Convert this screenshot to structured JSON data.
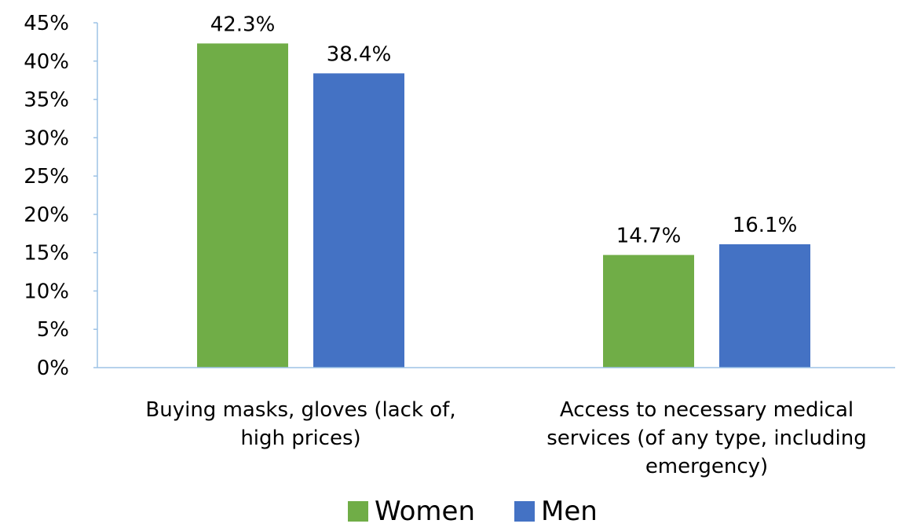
{
  "chart_data": {
    "type": "bar",
    "categories": [
      [
        "Buying masks, gloves (lack of,",
        "high prices)"
      ],
      [
        "Access to necessary medical",
        "services (of any type, including",
        "emergency)"
      ]
    ],
    "series": [
      {
        "name": "Women",
        "values": [
          42.3,
          14.7
        ],
        "labels": [
          "42.3%",
          "14.7%"
        ],
        "color": "#70AD47"
      },
      {
        "name": "Men",
        "values": [
          38.4,
          16.1
        ],
        "labels": [
          "38.4%",
          "16.1%"
        ],
        "color": "#4472C4"
      }
    ],
    "ylim": [
      0,
      45
    ],
    "y_ticks": [
      "0%",
      "5%",
      "10%",
      "15%",
      "20%",
      "25%",
      "30%",
      "35%",
      "40%",
      "45%"
    ],
    "grid": false,
    "legend_position": "bottom",
    "axis_color": "#9DC3E6"
  }
}
